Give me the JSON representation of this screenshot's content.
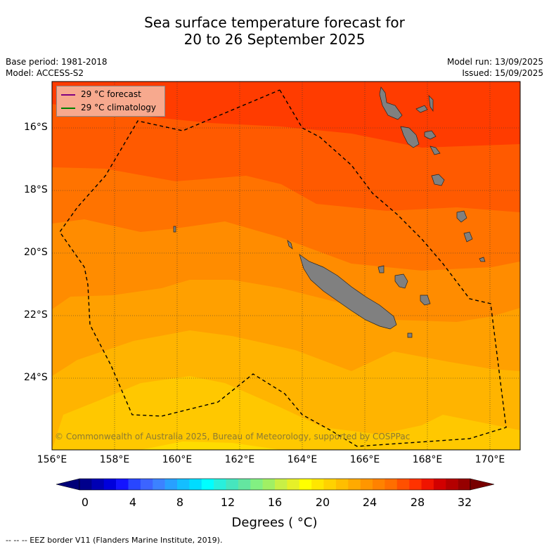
{
  "title_line1": "Sea surface temperature forecast for",
  "title_line2": "20 to 26 September 2025",
  "base_period": "Base period: 1981-2018",
  "model": "Model: ACCESS-S2",
  "model_run": "Model run: 13/09/2025",
  "issued": "Issued: 15/09/2025",
  "legend": {
    "forecast_label": "29 °C  forecast",
    "forecast_color": "#800080",
    "climatology_label": "29 °C  climatology",
    "climatology_color": "#008000"
  },
  "lat_labels": [
    "16°S",
    "18°S",
    "20°S",
    "22°S",
    "24°S"
  ],
  "lon_labels": [
    "156°E",
    "158°E",
    "160°E",
    "162°E",
    "164°E",
    "166°E",
    "168°E",
    "170°E"
  ],
  "copyright": "© Commonwealth of Australia 2025, Bureau of Meteorology, supported by COSPPac",
  "colorbar": {
    "ticks": [
      "0",
      "4",
      "8",
      "12",
      "16",
      "20",
      "24",
      "28",
      "32"
    ],
    "title": "Degrees ( °C)",
    "colors": [
      "#00008c",
      "#0000b4",
      "#0000dc",
      "#1414ff",
      "#2846ff",
      "#3c64ff",
      "#3c82ff",
      "#28a0ff",
      "#14beff",
      "#00dcff",
      "#00ffff",
      "#28f0dc",
      "#46e6be",
      "#64e6a0",
      "#82f082",
      "#a0f064",
      "#c8f046",
      "#e6f028",
      "#ffff00",
      "#ffe600",
      "#ffd200",
      "#ffbe00",
      "#ffaa00",
      "#ff9600",
      "#ff8200",
      "#ff6e00",
      "#ff5000",
      "#ff3200",
      "#f01400",
      "#d20000",
      "#b40000",
      "#960000"
    ]
  },
  "footnote": "--  --  -- EEZ border V11 (Flanders Marine Institute, 2019).",
  "map_colors": {
    "band1": "#ff3c00",
    "band2": "#ff5a00",
    "band3": "#ff7300",
    "band4": "#ff8c00",
    "band5": "#ffa000",
    "band6": "#ffb400",
    "band7": "#ffc800",
    "band8": "#ffdc00",
    "land": "#808080"
  }
}
